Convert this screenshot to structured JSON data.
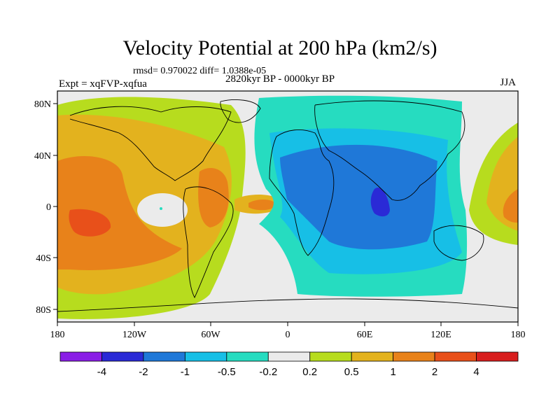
{
  "chart_data": {
    "type": "heatmap",
    "title": "Velocity Potential at 200 hPa (km2/s)",
    "stats_text": "rmsd= 0.970022 diff= 1.0388e-05",
    "left_label": "Expt = xqFVP-xqfua",
    "center_label": "2820kyr BP - 0000kyr BP",
    "right_label": "JJA",
    "x_axis": {
      "range": [
        -180,
        180
      ],
      "ticks": [
        -180,
        -120,
        -60,
        0,
        60,
        120,
        180
      ],
      "tick_labels": [
        "180",
        "120W",
        "60W",
        "0",
        "60E",
        "120E",
        "180"
      ]
    },
    "y_axis": {
      "range": [
        -90,
        90
      ],
      "ticks": [
        80,
        40,
        0,
        -40,
        -80
      ],
      "tick_labels": [
        "80N",
        "40N",
        "0",
        "40S",
        "80S"
      ]
    },
    "colorbar": {
      "boundary_labels": [
        "-4",
        "-2",
        "-1",
        "-0.5",
        "-0.2",
        "0.2",
        "0.5",
        "1",
        "2",
        "4"
      ],
      "colors": [
        "#8a1ee6",
        "#2a2ad6",
        "#1f78d8",
        "#17bfe6",
        "#26dcc0",
        "#ebebeb",
        "#b7dc1e",
        "#e3b21e",
        "#e8821a",
        "#e8501a",
        "#d81e1e"
      ]
    },
    "regions": [
      {
        "name": "pacific-positive",
        "level": 1,
        "center": [
          -125,
          5
        ],
        "radii": [
          60,
          48
        ]
      },
      {
        "name": "pacific-core",
        "level": 2,
        "center": [
          -135,
          -5
        ],
        "radii": [
          42,
          30
        ]
      },
      {
        "name": "pacific-max",
        "level": 3,
        "center": [
          -165,
          -10
        ],
        "radii": [
          14,
          8
        ]
      },
      {
        "name": "east-pacific-min",
        "level": -1,
        "center": [
          -100,
          0
        ],
        "radii": [
          14,
          8
        ]
      },
      {
        "name": "south-america-positive",
        "level": 2,
        "center": [
          -60,
          5
        ],
        "radii": [
          12,
          22
        ]
      },
      {
        "name": "atlantic-positive",
        "level": 2,
        "center": [
          -15,
          1
        ],
        "radii": [
          10,
          4
        ]
      },
      {
        "name": "indian-negative",
        "level": -3,
        "center": [
          55,
          -10
        ],
        "radii": [
          55,
          55
        ]
      },
      {
        "name": "indian-core",
        "level": -4,
        "center": [
          68,
          0
        ],
        "radii": [
          6,
          12
        ]
      },
      {
        "name": "west-pacific-positive",
        "level": 2,
        "center": [
          170,
          0
        ],
        "radii": [
          25,
          35
        ]
      }
    ]
  }
}
